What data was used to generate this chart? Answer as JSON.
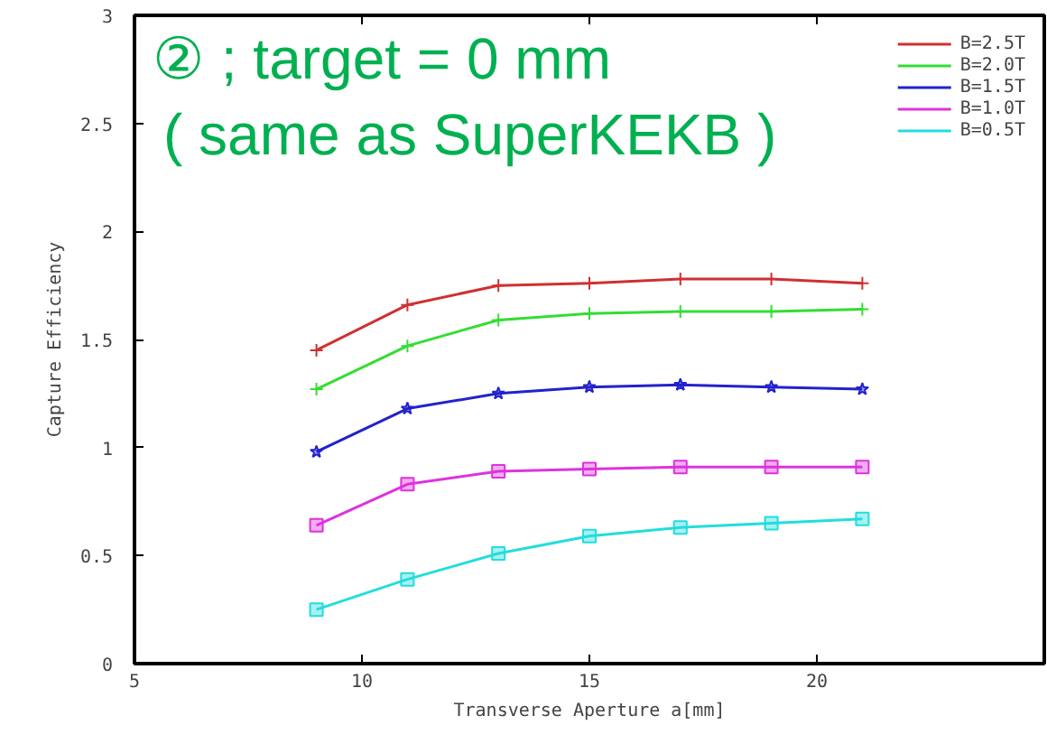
{
  "chart_data": {
    "type": "line",
    "title": "② ; target = 0 mm\n( same as SuperKEKB )",
    "xlabel": "Transverse Aperture a[mm]",
    "ylabel": "Capture Efficiency",
    "x": [
      9,
      11,
      13,
      15,
      17,
      19,
      21
    ],
    "series": [
      {
        "name": "B=2.5T",
        "color": "#d03030",
        "marker": "cross",
        "values": [
          1.45,
          1.66,
          1.75,
          1.76,
          1.78,
          1.78,
          1.76
        ]
      },
      {
        "name": "B=2.0T",
        "color": "#33dd33",
        "marker": "cross",
        "values": [
          1.27,
          1.47,
          1.59,
          1.62,
          1.63,
          1.63,
          1.64
        ]
      },
      {
        "name": "B=1.5T",
        "color": "#2222cc",
        "marker": "star",
        "values": [
          0.98,
          1.18,
          1.25,
          1.28,
          1.29,
          1.28,
          1.27
        ]
      },
      {
        "name": "B=1.0T",
        "color": "#dd33dd",
        "marker": "square",
        "values": [
          0.64,
          0.83,
          0.89,
          0.9,
          0.91,
          0.91,
          0.91
        ]
      },
      {
        "name": "B=0.5T",
        "color": "#22dddd",
        "marker": "square",
        "values": [
          0.25,
          0.39,
          0.51,
          0.59,
          0.63,
          0.65,
          0.67
        ]
      }
    ],
    "xlim": [
      5,
      25
    ],
    "ylim": [
      0,
      3
    ],
    "xticks": [
      5,
      10,
      15,
      20
    ],
    "yticks": [
      0,
      0.5,
      1,
      1.5,
      2,
      2.5,
      3
    ],
    "grid": false,
    "legend": "top right"
  }
}
